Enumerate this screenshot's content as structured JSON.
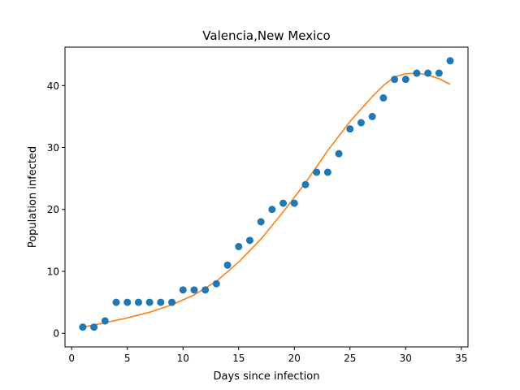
{
  "chart_data": {
    "type": "scatter",
    "title": "Valencia,New Mexico",
    "xlabel": "Days since infection",
    "ylabel": "Population infected",
    "xlim": [
      -0.6,
      35.6
    ],
    "ylim": [
      -2.2,
      46.2
    ],
    "xticks": [
      0,
      5,
      10,
      15,
      20,
      25,
      30,
      35
    ],
    "yticks": [
      0,
      10,
      20,
      30,
      40
    ],
    "grid": false,
    "legend": "none",
    "series": [
      {
        "kind": "scatter",
        "color": "#1f77b4",
        "x": [
          1,
          2,
          3,
          4,
          5,
          6,
          7,
          8,
          9,
          10,
          11,
          12,
          13,
          14,
          15,
          16,
          17,
          18,
          19,
          20,
          21,
          22,
          23,
          24,
          25,
          26,
          27,
          28,
          29,
          30,
          31,
          32,
          33,
          34
        ],
        "y": [
          1,
          1,
          2,
          5,
          5,
          5,
          5,
          5,
          5,
          7,
          7,
          7,
          8,
          11,
          14,
          15,
          18,
          20,
          21,
          21,
          24,
          26,
          26,
          29,
          33,
          34,
          35,
          38,
          41,
          41,
          42,
          42,
          42,
          44
        ]
      },
      {
        "kind": "line",
        "color": "#ff7f0e",
        "x": [
          1,
          3,
          5,
          7,
          9,
          11,
          13,
          15,
          17,
          19,
          21,
          23,
          25,
          27,
          28,
          29,
          30,
          31,
          32,
          33,
          34
        ],
        "y": [
          1.0,
          1.7,
          2.5,
          3.4,
          4.6,
          6.2,
          8.4,
          11.5,
          15.2,
          19.6,
          24.3,
          29.5,
          34.2,
          38.2,
          40.0,
          41.4,
          41.9,
          42.0,
          41.7,
          41.1,
          40.2
        ]
      }
    ]
  }
}
